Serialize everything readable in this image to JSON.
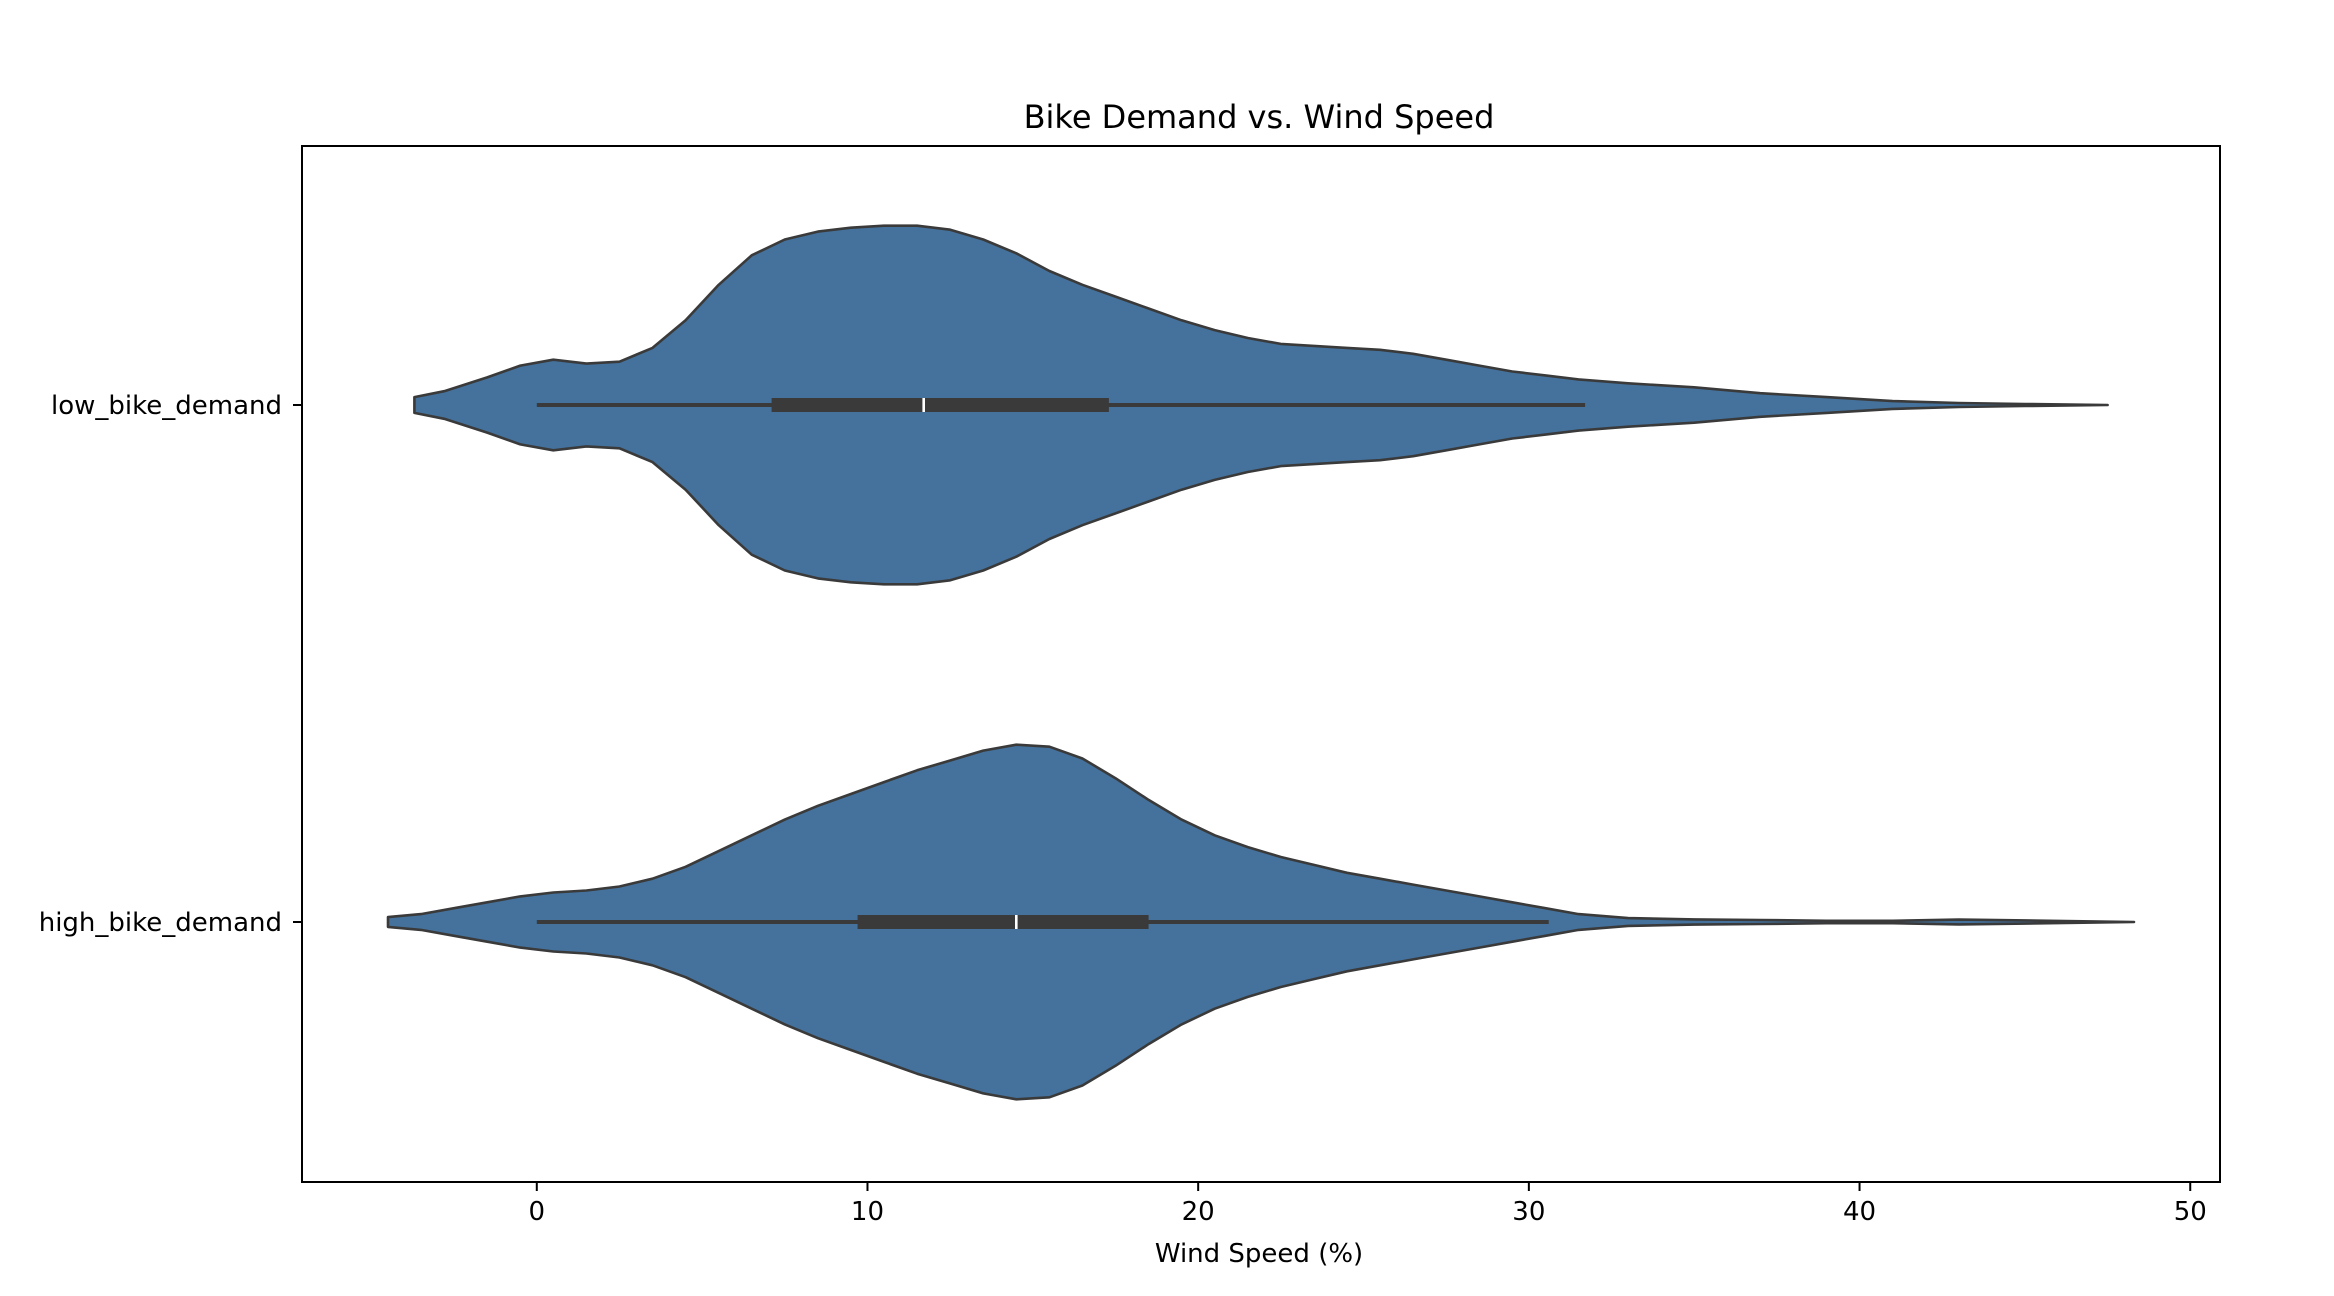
{
  "chart_data": {
    "type": "violin",
    "title": "Bike Demand vs. Wind Speed",
    "xlabel": "Wind Speed (%)",
    "ylabel": "",
    "xlim": [
      -7.1,
      50.9
    ],
    "xticks": [
      0,
      10,
      20,
      30,
      40,
      50
    ],
    "xtick_labels": [
      "0",
      "10",
      "20",
      "30",
      "40",
      "50"
    ],
    "orientation": "horizontal",
    "grid": false,
    "legend": "none",
    "colors": {
      "fill": "#44729d",
      "edge": "#3a3a3a",
      "median": "#ffffff",
      "box": "#3a3a3a"
    },
    "categories": [
      "low_bike_demand",
      "high_bike_demand"
    ],
    "series": [
      {
        "category": "low_bike_demand",
        "box": {
          "whisker_low": 0,
          "q1": 7.1,
          "median": 11.7,
          "q3": 17.3,
          "whisker_high": 31.7
        },
        "density": [
          [
            -3.7,
            0.03
          ],
          [
            -3.7,
            0.04
          ],
          [
            -2.8,
            0.07
          ],
          [
            -1.5,
            0.14
          ],
          [
            -0.5,
            0.2
          ],
          [
            0.5,
            0.23
          ],
          [
            1.5,
            0.21
          ],
          [
            2.5,
            0.22
          ],
          [
            3.5,
            0.29
          ],
          [
            4.5,
            0.43
          ],
          [
            5.5,
            0.61
          ],
          [
            6.5,
            0.76
          ],
          [
            7.5,
            0.84
          ],
          [
            8.5,
            0.88
          ],
          [
            9.5,
            0.9
          ],
          [
            10.5,
            0.91
          ],
          [
            11.5,
            0.91
          ],
          [
            12.5,
            0.89
          ],
          [
            13.5,
            0.84
          ],
          [
            14.5,
            0.77
          ],
          [
            15.5,
            0.68
          ],
          [
            16.5,
            0.61
          ],
          [
            17.5,
            0.55
          ],
          [
            18.5,
            0.49
          ],
          [
            19.5,
            0.43
          ],
          [
            20.5,
            0.38
          ],
          [
            21.5,
            0.34
          ],
          [
            22.5,
            0.31
          ],
          [
            23.5,
            0.3
          ],
          [
            24.5,
            0.29
          ],
          [
            25.5,
            0.28
          ],
          [
            26.5,
            0.26
          ],
          [
            27.5,
            0.23
          ],
          [
            28.5,
            0.2
          ],
          [
            29.5,
            0.17
          ],
          [
            30.5,
            0.15
          ],
          [
            31.5,
            0.13
          ],
          [
            33,
            0.11
          ],
          [
            35,
            0.09
          ],
          [
            37,
            0.06
          ],
          [
            39,
            0.04
          ],
          [
            41,
            0.02
          ],
          [
            43,
            0.01
          ],
          [
            45,
            0.005
          ],
          [
            47.5,
            0.0
          ]
        ]
      },
      {
        "category": "high_bike_demand",
        "box": {
          "whisker_low": 0,
          "q1": 9.7,
          "median": 14.5,
          "q3": 18.5,
          "whisker_high": 30.6
        },
        "density": [
          [
            -4.5,
            0.02
          ],
          [
            -4.5,
            0.025
          ],
          [
            -3.5,
            0.04
          ],
          [
            -2.5,
            0.07
          ],
          [
            -1.5,
            0.1
          ],
          [
            -0.5,
            0.13
          ],
          [
            0.5,
            0.15
          ],
          [
            1.5,
            0.16
          ],
          [
            2.5,
            0.18
          ],
          [
            3.5,
            0.22
          ],
          [
            4.5,
            0.28
          ],
          [
            5.5,
            0.36
          ],
          [
            6.5,
            0.44
          ],
          [
            7.5,
            0.52
          ],
          [
            8.5,
            0.59
          ],
          [
            9.5,
            0.65
          ],
          [
            10.5,
            0.71
          ],
          [
            11.5,
            0.77
          ],
          [
            12.5,
            0.82
          ],
          [
            13.5,
            0.87
          ],
          [
            14.5,
            0.9
          ],
          [
            15.5,
            0.89
          ],
          [
            16.5,
            0.83
          ],
          [
            17.5,
            0.73
          ],
          [
            18.5,
            0.62
          ],
          [
            19.5,
            0.52
          ],
          [
            20.5,
            0.44
          ],
          [
            21.5,
            0.38
          ],
          [
            22.5,
            0.33
          ],
          [
            23.5,
            0.29
          ],
          [
            24.5,
            0.25
          ],
          [
            25.5,
            0.22
          ],
          [
            26.5,
            0.19
          ],
          [
            27.5,
            0.16
          ],
          [
            28.5,
            0.13
          ],
          [
            29.5,
            0.1
          ],
          [
            30.5,
            0.07
          ],
          [
            31.5,
            0.04
          ],
          [
            33,
            0.02
          ],
          [
            35,
            0.013
          ],
          [
            37,
            0.01
          ],
          [
            39,
            0.006
          ],
          [
            41,
            0.006
          ],
          [
            43,
            0.012
          ],
          [
            45,
            0.008
          ],
          [
            46.5,
            0.004
          ],
          [
            48.3,
            0.0
          ]
        ]
      }
    ]
  }
}
